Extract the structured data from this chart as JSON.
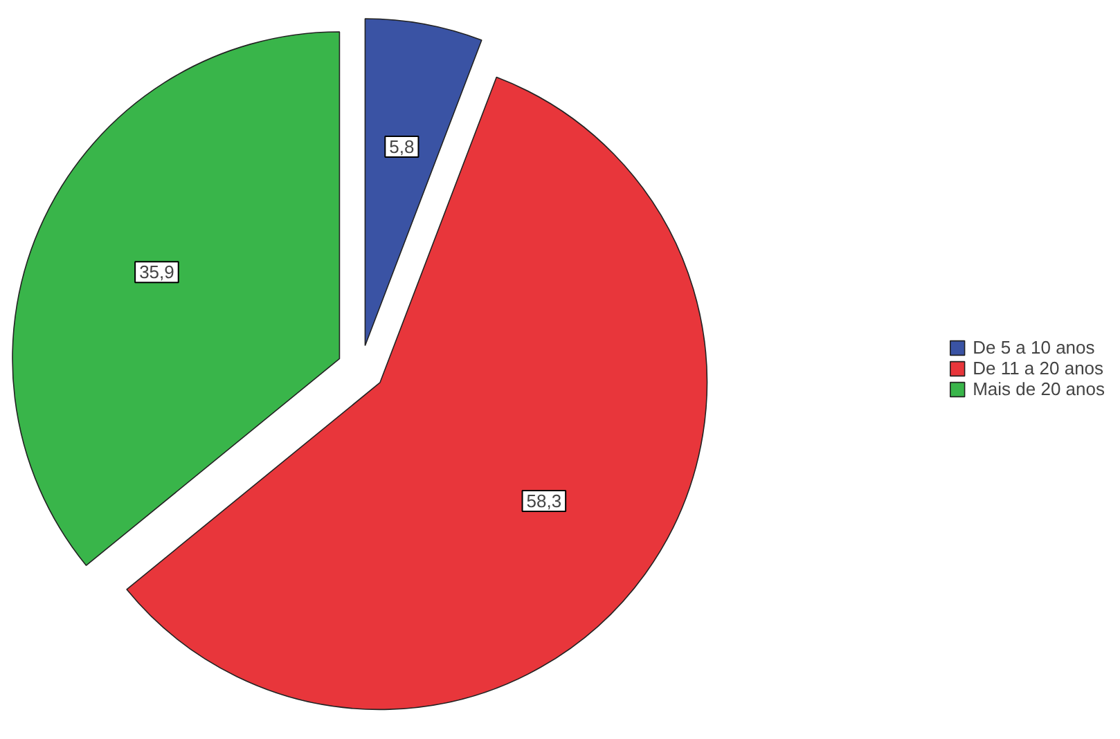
{
  "chart_data": {
    "type": "pie",
    "categories": [
      "De 5 a 10 anos",
      "De 11 a 20 anos",
      "Mais de 20 anos"
    ],
    "values": [
      5.8,
      58.3,
      35.9
    ],
    "colors": [
      "#3a53a4",
      "#e8363b",
      "#39b54a"
    ],
    "value_labels": [
      "5,8",
      "58,3",
      "35,9"
    ],
    "legend": "right"
  }
}
